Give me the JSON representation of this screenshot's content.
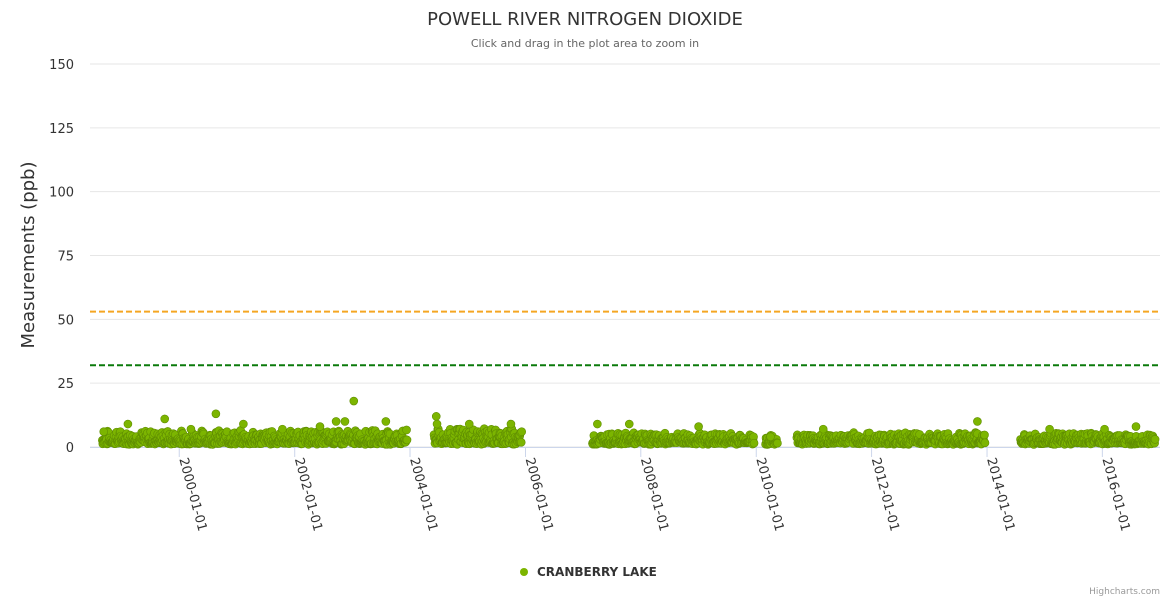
{
  "chart_data": {
    "type": "scatter",
    "title": "POWELL RIVER NITROGEN DIOXIDE",
    "subtitle": "Click and drag in the plot area to zoom in",
    "xlabel": "",
    "ylabel": "Measurements (ppb)",
    "ylim": [
      0,
      150
    ],
    "y_ticks": [
      0,
      25,
      50,
      75,
      100,
      125,
      150
    ],
    "xlim": [
      "1998-06-15",
      "2016-12-31"
    ],
    "x_tick_labels": [
      "2000-01-01",
      "2002-01-01",
      "2004-01-01",
      "2006-01-01",
      "2008-01-01",
      "2010-01-01",
      "2012-01-01",
      "2014-01-01",
      "2016-01-01"
    ],
    "grid": true,
    "reference_lines": [
      {
        "value": 53,
        "color": "#F5A623",
        "style": "dashed"
      },
      {
        "value": 32,
        "color": "#0B7A0B",
        "style": "dashed"
      }
    ],
    "series": [
      {
        "name": "CRANBERRY LAKE",
        "color": "#7CB500",
        "segments": [
          {
            "start": "1998-09-01",
            "end": "2003-12-15",
            "typical_range": [
              1,
              6
            ]
          },
          {
            "start": "2004-06-01",
            "end": "2005-12-10",
            "typical_range": [
              1,
              7
            ]
          },
          {
            "start": "2007-03-01",
            "end": "2009-12-20",
            "typical_range": [
              1,
              5
            ]
          },
          {
            "start": "2010-03-01",
            "end": "2010-05-15",
            "typical_range": [
              1,
              4
            ]
          },
          {
            "start": "2010-09-15",
            "end": "2013-12-20",
            "typical_range": [
              1,
              5
            ]
          },
          {
            "start": "2014-08-01",
            "end": "2016-11-30",
            "typical_range": [
              1,
              5
            ]
          }
        ],
        "notable_values": [
          {
            "x": "1998-09-10",
            "y": 6
          },
          {
            "x": "1999-02-10",
            "y": 9
          },
          {
            "x": "1999-10-01",
            "y": 11
          },
          {
            "x": "2000-03-15",
            "y": 7
          },
          {
            "x": "2000-08-20",
            "y": 13
          },
          {
            "x": "2001-02-10",
            "y": 9
          },
          {
            "x": "2001-10-15",
            "y": 7
          },
          {
            "x": "2002-06-10",
            "y": 8
          },
          {
            "x": "2002-09-20",
            "y": 10
          },
          {
            "x": "2002-11-15",
            "y": 10
          },
          {
            "x": "2003-01-10",
            "y": 18
          },
          {
            "x": "2003-08-01",
            "y": 10
          },
          {
            "x": "2004-06-15",
            "y": 12
          },
          {
            "x": "2004-06-20",
            "y": 9
          },
          {
            "x": "2005-01-10",
            "y": 9
          },
          {
            "x": "2005-10-01",
            "y": 9
          },
          {
            "x": "2007-04-01",
            "y": 9
          },
          {
            "x": "2007-10-20",
            "y": 9
          },
          {
            "x": "2009-01-01",
            "y": 8
          },
          {
            "x": "2010-04-01",
            "y": 4
          },
          {
            "x": "2011-03-01",
            "y": 7
          },
          {
            "x": "2013-11-01",
            "y": 10
          },
          {
            "x": "2015-02-01",
            "y": 7
          },
          {
            "x": "2016-01-15",
            "y": 7
          },
          {
            "x": "2016-08-01",
            "y": 8
          }
        ]
      }
    ]
  },
  "credits": "Highcharts.com"
}
